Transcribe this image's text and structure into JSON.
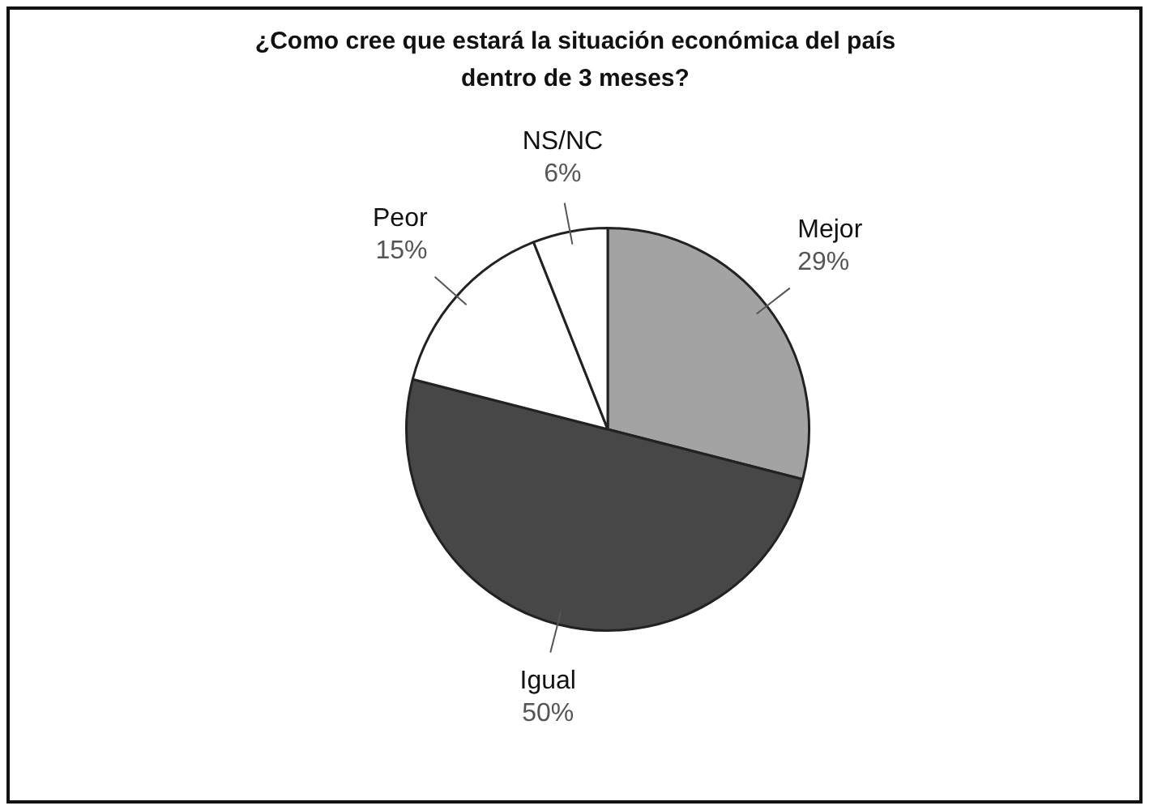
{
  "chart_data": {
    "type": "pie",
    "title": "¿Como cree que estará la situación económica del país dentro de 3 meses?",
    "categories": [
      "Mejor",
      "Igual",
      "Peor",
      "NS/NC"
    ],
    "values": [
      29,
      50,
      15,
      6
    ],
    "colors": [
      "#a3a3a3",
      "#474747",
      "#ffffff",
      "#ffffff"
    ],
    "value_labels": [
      "29%",
      "50%",
      "15%",
      "6%"
    ],
    "legend": false
  }
}
